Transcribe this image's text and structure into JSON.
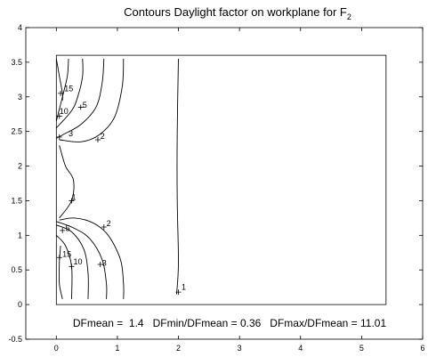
{
  "chart_data": {
    "type": "contour",
    "title": "Contours Daylight factor on workplane  for F",
    "title_subscript": "2",
    "xlim": [
      -0.5,
      6
    ],
    "ylim": [
      -0.5,
      4
    ],
    "xticks": [
      0,
      1,
      2,
      3,
      4,
      5,
      6
    ],
    "yticks": [
      -0.5,
      0,
      0.5,
      1,
      1.5,
      2,
      2.5,
      3,
      3.5,
      4
    ],
    "grid": false,
    "room_outline": {
      "x": [
        0,
        5.4
      ],
      "y": [
        0,
        3.6
      ]
    },
    "contours": [
      {
        "level": "15",
        "paths": [
          [
            [
              0.0,
              3.55
            ],
            [
              0.05,
              3.3
            ],
            [
              0.1,
              3.05
            ],
            [
              0.1,
              2.95
            ]
          ],
          [
            [
              0.07,
              0.85
            ],
            [
              0.05,
              0.6
            ],
            [
              0.05,
              0.3
            ],
            [
              0.1,
              0.08
            ]
          ]
        ]
      },
      {
        "level": "10",
        "paths": [
          [
            [
              0.2,
              3.55
            ],
            [
              0.18,
              3.3
            ],
            [
              0.1,
              3.0
            ],
            [
              0.0,
              2.65
            ]
          ],
          [
            [
              0.0,
              1.0
            ],
            [
              0.15,
              0.85
            ],
            [
              0.25,
              0.55
            ],
            [
              0.25,
              0.08
            ]
          ]
        ]
      },
      {
        "level": "5",
        "paths": [
          [
            [
              0.43,
              3.55
            ],
            [
              0.43,
              3.3
            ],
            [
              0.35,
              3.0
            ],
            [
              0.25,
              2.8
            ],
            [
              0.0,
              2.55
            ]
          ],
          [
            [
              0.0,
              1.15
            ],
            [
              0.25,
              1.05
            ],
            [
              0.45,
              0.8
            ],
            [
              0.52,
              0.45
            ],
            [
              0.52,
              0.08
            ]
          ]
        ]
      },
      {
        "level": "3",
        "paths": [
          [
            [
              0.78,
              3.55
            ],
            [
              0.75,
              3.2
            ],
            [
              0.65,
              2.85
            ],
            [
              0.4,
              2.6
            ],
            [
              0.1,
              2.45
            ],
            [
              0.0,
              2.4
            ]
          ],
          [
            [
              0.0,
              1.2
            ],
            [
              0.3,
              1.1
            ],
            [
              0.55,
              0.95
            ],
            [
              0.75,
              0.65
            ],
            [
              0.82,
              0.3
            ],
            [
              0.82,
              0.08
            ]
          ]
        ]
      },
      {
        "level": "2",
        "paths": [
          [
            [
              1.1,
              3.55
            ],
            [
              1.08,
              3.15
            ],
            [
              0.95,
              2.7
            ],
            [
              0.7,
              2.45
            ],
            [
              0.4,
              2.35
            ],
            [
              0.05,
              2.38
            ]
          ],
          [
            [
              0.05,
              1.22
            ],
            [
              0.3,
              1.25
            ],
            [
              0.6,
              1.18
            ],
            [
              0.85,
              1.0
            ],
            [
              1.05,
              0.65
            ],
            [
              1.1,
              0.3
            ],
            [
              1.1,
              0.08
            ]
          ]
        ]
      },
      {
        "level": "1",
        "paths": [
          [
            [
              0.05,
              2.3
            ],
            [
              0.15,
              2.0
            ],
            [
              0.28,
              1.8
            ],
            [
              0.25,
              1.5
            ],
            [
              0.05,
              1.25
            ]
          ],
          [
            [
              2.0,
              3.55
            ],
            [
              1.98,
              2.5
            ],
            [
              1.98,
              1.5
            ],
            [
              2.0,
              0.6
            ],
            [
              1.97,
              0.15
            ]
          ]
        ]
      }
    ],
    "labels": [
      {
        "text": "15",
        "x": 0.13,
        "y": 3.12
      },
      {
        "text": "10",
        "x": 0.05,
        "y": 2.79
      },
      {
        "text": "5",
        "x": 0.43,
        "y": 2.88
      },
      {
        "text": "3",
        "x": 0.2,
        "y": 2.47
      },
      {
        "text": "2",
        "x": 0.72,
        "y": 2.43
      },
      {
        "text": "1",
        "x": 0.25,
        "y": 1.55
      },
      {
        "text": "5",
        "x": 0.15,
        "y": 1.1
      },
      {
        "text": "2",
        "x": 0.82,
        "y": 1.17
      },
      {
        "text": "15",
        "x": 0.1,
        "y": 0.73
      },
      {
        "text": "10",
        "x": 0.28,
        "y": 0.62
      },
      {
        "text": "3",
        "x": 0.75,
        "y": 0.6
      },
      {
        "text": "1",
        "x": 2.05,
        "y": 0.25
      }
    ],
    "markers": [
      {
        "x": 0.07,
        "y": 3.05
      },
      {
        "x": 0.05,
        "y": 2.72
      },
      {
        "x": 0.4,
        "y": 2.85
      },
      {
        "x": 0.05,
        "y": 2.42
      },
      {
        "x": 0.68,
        "y": 2.38
      },
      {
        "x": 0.25,
        "y": 1.5
      },
      {
        "x": 0.1,
        "y": 1.07
      },
      {
        "x": 0.78,
        "y": 1.12
      },
      {
        "x": 0.05,
        "y": 0.68
      },
      {
        "x": 0.25,
        "y": 0.55
      },
      {
        "x": 0.72,
        "y": 0.58
      },
      {
        "x": 2.0,
        "y": 0.18
      }
    ],
    "stats": "DFmean =  1.4   DFmin/DFmean = 0.36   DFmax/DFmean = 11.01"
  }
}
